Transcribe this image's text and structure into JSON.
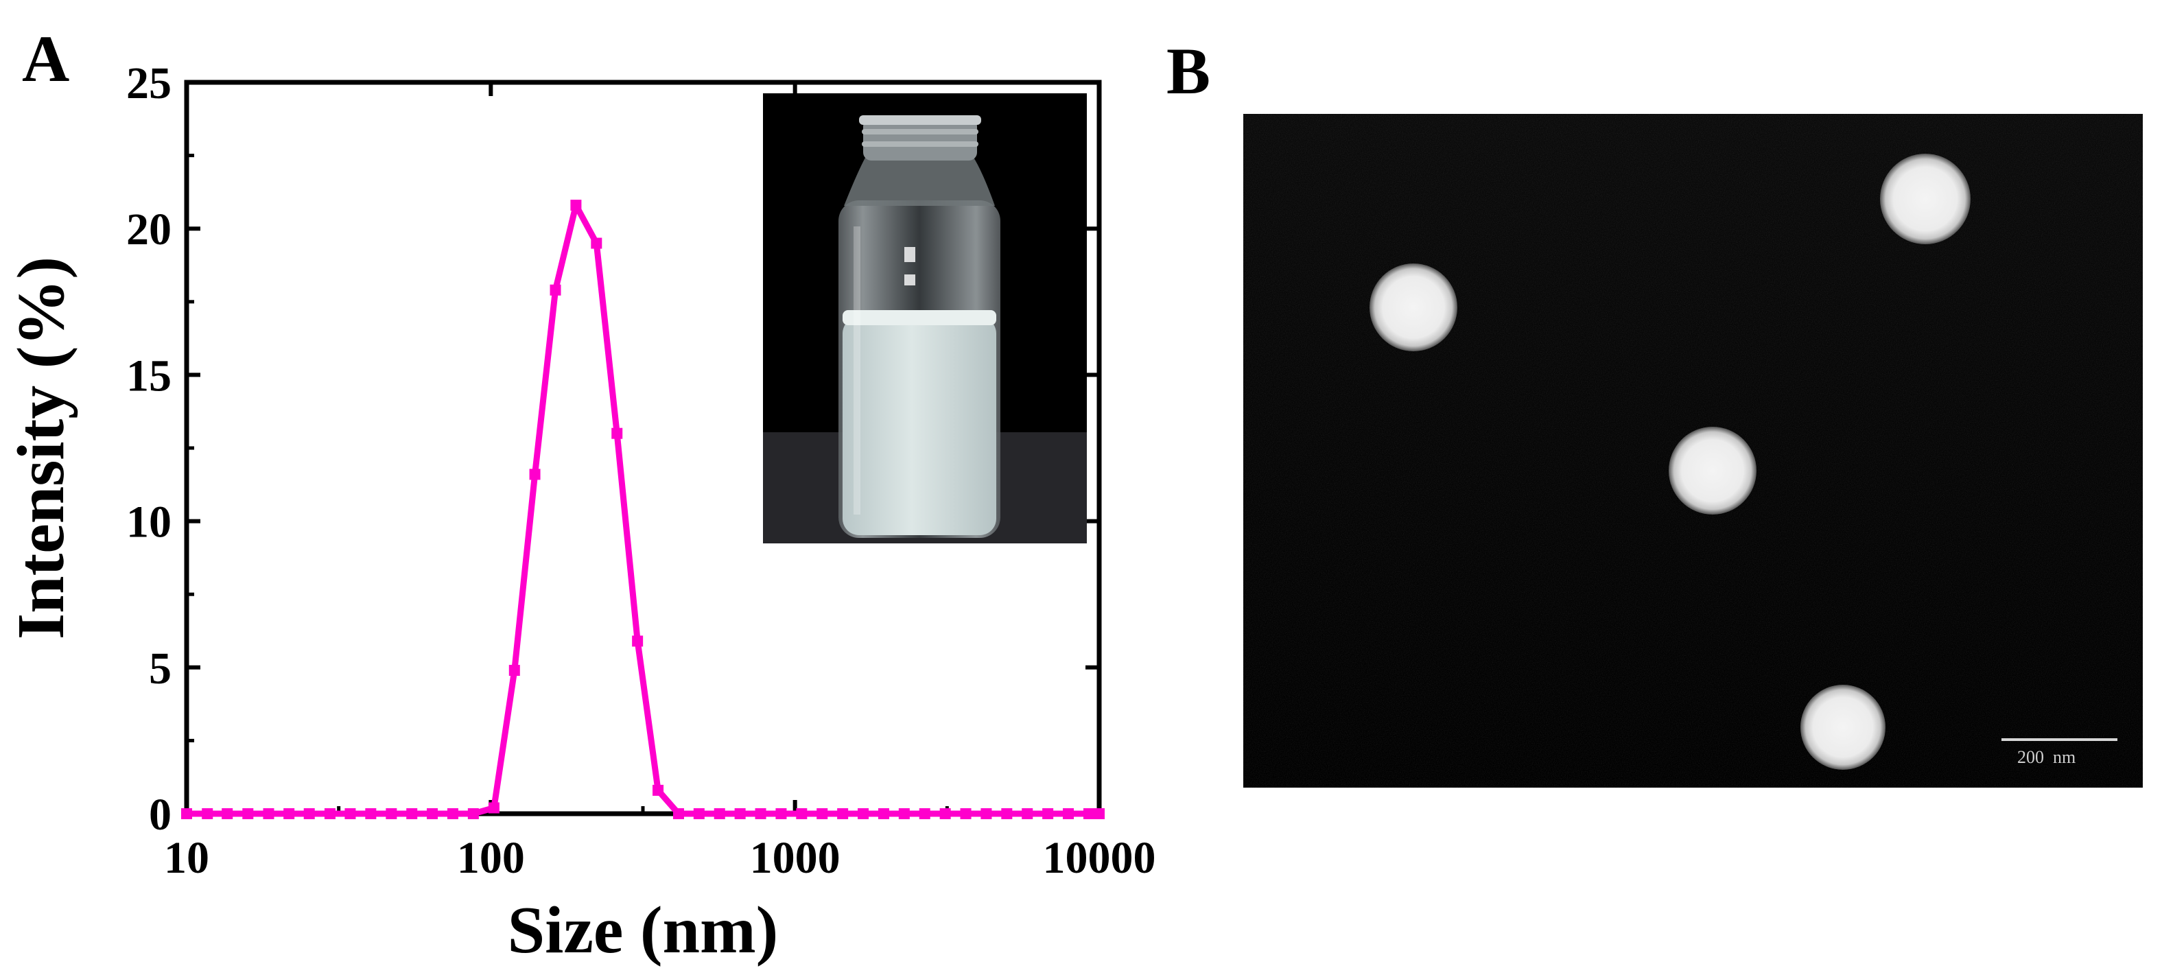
{
  "panels": {
    "a_label": "A",
    "b_label": "B"
  },
  "chart_data": {
    "type": "line",
    "title": "",
    "xlabel": "Size (nm)",
    "ylabel": "Intensity (%)",
    "x_scale": "log",
    "xlim": [
      10,
      10000
    ],
    "ylim": [
      0,
      25
    ],
    "x_ticks": [
      10,
      100,
      1000,
      10000
    ],
    "x_tick_labels": [
      "10",
      "100",
      "1000",
      "10000"
    ],
    "y_ticks": [
      0,
      5,
      10,
      15,
      20,
      25
    ],
    "y_tick_labels": [
      "0",
      "5",
      "10",
      "15",
      "20",
      "25"
    ],
    "grid": false,
    "legend": "none",
    "line_color": "#ff00cc",
    "series": [
      {
        "x": [
          10,
          11.7,
          13.6,
          15.9,
          18.6,
          21.7,
          25.3,
          29.6,
          34.5,
          40.3,
          47.1,
          55.0,
          64.2,
          75.0,
          87.6,
          102.4,
          119.6,
          139.6,
          163.1,
          190.5,
          222.5,
          259.9,
          303.6,
          354.6,
          414.2,
          483.7,
          565.0,
          659.9,
          770.8,
          900.3,
          1051.5,
          1228.1,
          1434.5,
          1675.5,
          1957.0,
          2285.7,
          2669.8,
          3118.3,
          3642.2,
          4254.0,
          4968.7,
          5803.5,
          6778.5,
          7917.3,
          9247.5,
          10000
        ],
        "y": [
          0,
          0,
          0,
          0,
          0,
          0,
          0,
          0,
          0,
          0,
          0,
          0,
          0,
          0,
          0,
          0.2,
          4.9,
          11.6,
          17.9,
          20.8,
          19.5,
          13.0,
          5.9,
          0.8,
          0,
          0,
          0,
          0,
          0,
          0,
          0,
          0,
          0,
          0,
          0,
          0,
          0,
          0,
          0,
          0,
          0,
          0,
          0,
          0,
          0,
          0
        ]
      }
    ]
  },
  "inset_photo": {
    "subject": "glass-vial-with-milky-nanoemulsion"
  },
  "tem_image": {
    "scale_bar_label": "200  nm"
  }
}
